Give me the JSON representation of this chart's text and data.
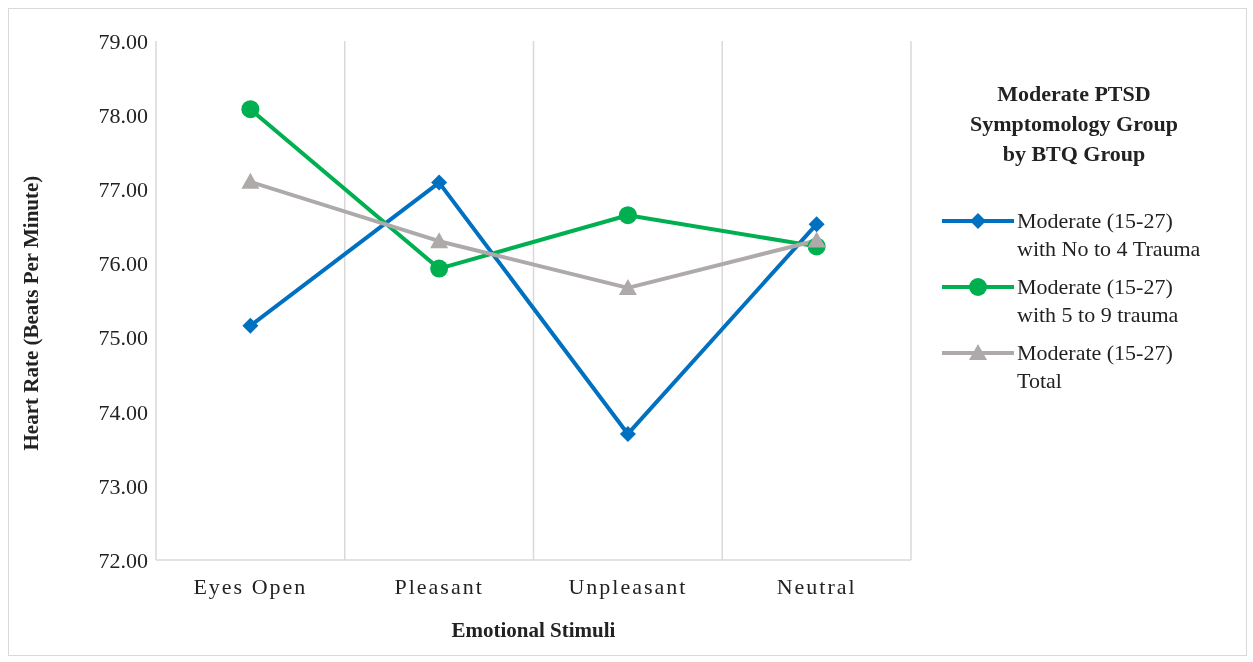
{
  "chart_data": {
    "type": "line",
    "xlabel": "Emotional Stimuli",
    "ylabel": "Heart Rate (Beats Per Minute)",
    "legend_title": "Moderate PTSD Symptomology Group by BTQ Group",
    "categories": [
      "Eyes Open",
      "Pleasant",
      "Unpleasant",
      "Neutral"
    ],
    "series": [
      {
        "name": "Moderate (15-27) with No to 4 Trauma",
        "color": "#0070c0",
        "marker": "diamond",
        "values": [
          75.16,
          77.09,
          73.7,
          76.53
        ]
      },
      {
        "name": "Moderate (15-27) with 5 to 9 trauma",
        "color": "#00b050",
        "marker": "circle",
        "values": [
          78.08,
          75.93,
          76.65,
          76.23
        ]
      },
      {
        "name": "Moderate (15-27) Total",
        "color": "#aeaaaa",
        "marker": "triangle",
        "values": [
          77.1,
          76.3,
          75.67,
          76.31
        ]
      }
    ],
    "ylim": [
      72,
      79
    ],
    "yticks": [
      {
        "value": 72,
        "label": "72.00"
      },
      {
        "value": 73,
        "label": "73.00"
      },
      {
        "value": 74,
        "label": "74.00"
      },
      {
        "value": 75,
        "label": "75.00"
      },
      {
        "value": 76,
        "label": "76.00"
      },
      {
        "value": 77,
        "label": "77.00"
      },
      {
        "value": 78,
        "label": "78.00"
      },
      {
        "value": 79,
        "label": "79.00"
      }
    ],
    "grid": "x",
    "legend": "right",
    "line_style": "solid"
  }
}
